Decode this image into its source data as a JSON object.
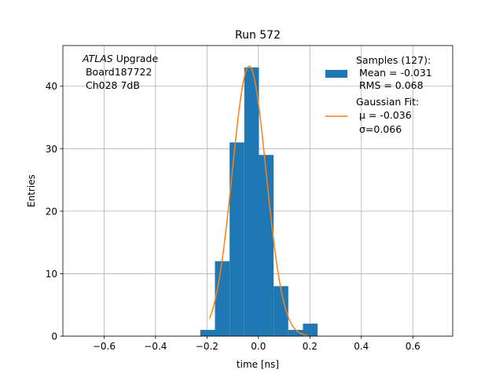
{
  "chart_data": {
    "type": "bar",
    "title": "Run 572",
    "xlabel": "time [ns]",
    "ylabel": "Entries",
    "xlim": [
      -0.76,
      0.755
    ],
    "ylim": [
      0,
      46.5
    ],
    "grid": true,
    "xticks": [
      -0.6,
      -0.4,
      -0.2,
      0.0,
      0.2,
      0.4,
      0.6
    ],
    "xtick_labels": [
      "−0.6",
      "−0.4",
      "−0.2",
      "0.0",
      "0.2",
      "0.4",
      "0.6"
    ],
    "yticks": [
      0,
      10,
      20,
      30,
      40
    ],
    "ytick_labels": [
      "0",
      "10",
      "20",
      "30",
      "40"
    ],
    "histogram": {
      "name": "Samples (127):",
      "color": "#1f77b4",
      "bin_width": 0.057,
      "bins": [
        {
          "left": -0.226,
          "count": 1
        },
        {
          "left": -0.169,
          "count": 12
        },
        {
          "left": -0.112,
          "count": 31
        },
        {
          "left": -0.055,
          "count": 43
        },
        {
          "left": 0.002,
          "count": 29
        },
        {
          "left": 0.059,
          "count": 8
        },
        {
          "left": 0.116,
          "count": 1
        },
        {
          "left": 0.173,
          "count": 2
        }
      ]
    },
    "fit": {
      "name": "Gaussian Fit:",
      "color": "#ff7f0e",
      "mu": -0.036,
      "sigma": 0.066,
      "amplitude": 43.2,
      "x_range": [
        -0.19,
        0.19
      ]
    },
    "legend": {
      "placement": "top-right",
      "samples_lines": [
        "Samples (127):",
        " Mean = -0.031",
        " RMS = 0.068"
      ],
      "fit_lines": [
        "Gaussian Fit:",
        " μ = -0.036",
        " σ=0.066"
      ]
    },
    "annotation": {
      "placement": "top-left",
      "line1_italic": "ATLAS",
      "line1_rest": " Upgrade",
      "line2": " Board187722",
      "line3": " Ch028 7dB"
    }
  }
}
